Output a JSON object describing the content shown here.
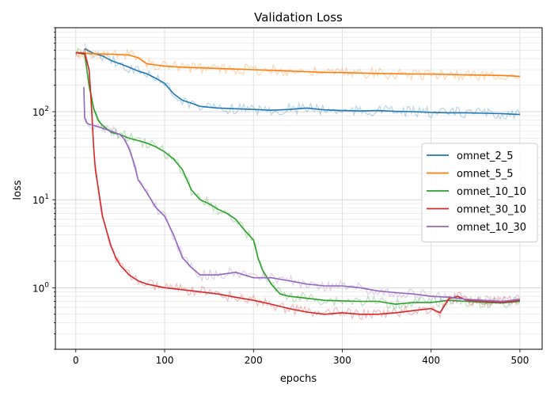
{
  "chart_data": {
    "type": "line",
    "title": "Validation Loss",
    "xlabel": "epochs",
    "ylabel": "loss",
    "x_scale": "linear",
    "y_scale": "log",
    "xlim": [
      -23,
      525
    ],
    "ylim": [
      0.2,
      900
    ],
    "grid": "major-and-minor",
    "legend_position": "center-right",
    "x_ticks": [
      0,
      100,
      200,
      300,
      400,
      500
    ],
    "y_ticks": [
      {
        "value": 1,
        "label": "10"
      },
      {
        "value": 10,
        "label": "10"
      },
      {
        "value": 100,
        "label": "10"
      }
    ],
    "y_tick_exponents": [
      "0",
      "1",
      "2"
    ],
    "series": [
      {
        "name": "omnet_2_5",
        "color": "#1f77b4",
        "x": [
          10,
          20,
          30,
          40,
          50,
          60,
          70,
          80,
          90,
          100,
          110,
          120,
          130,
          140,
          160,
          180,
          200,
          220,
          240,
          260,
          280,
          300,
          320,
          340,
          360,
          380,
          400,
          420,
          440,
          460,
          480,
          500
        ],
        "y": [
          520,
          460,
          430,
          380,
          350,
          320,
          290,
          270,
          240,
          210,
          160,
          135,
          125,
          115,
          110,
          108,
          106,
          104,
          106,
          110,
          105,
          103,
          102,
          103,
          101,
          100,
          98,
          97,
          97,
          96,
          95,
          93
        ]
      },
      {
        "name": "omnet_5_5",
        "color": "#ff7f0e",
        "x": [
          0,
          20,
          40,
          60,
          70,
          80,
          100,
          120,
          140,
          160,
          180,
          200,
          220,
          240,
          260,
          280,
          300,
          320,
          340,
          360,
          380,
          400,
          420,
          440,
          460,
          480,
          500
        ],
        "y": [
          470,
          455,
          450,
          440,
          410,
          350,
          330,
          320,
          315,
          310,
          305,
          300,
          295,
          290,
          285,
          280,
          278,
          275,
          272,
          270,
          268,
          267,
          265,
          262,
          260,
          258,
          252
        ]
      },
      {
        "name": "omnet_10_10",
        "color": "#2ca02c",
        "x": [
          0,
          10,
          15,
          20,
          25,
          30,
          40,
          50,
          60,
          70,
          80,
          90,
          100,
          110,
          120,
          130,
          140,
          150,
          160,
          170,
          180,
          190,
          200,
          205,
          210,
          220,
          230,
          240,
          250,
          260,
          280,
          300,
          320,
          340,
          360,
          380,
          400,
          420,
          440,
          460,
          480,
          500
        ],
        "y": [
          470,
          450,
          200,
          110,
          80,
          70,
          58,
          55,
          50,
          47,
          44,
          40,
          35,
          29,
          22,
          13,
          10,
          9,
          7.8,
          7,
          6,
          4.5,
          3.5,
          2.2,
          1.6,
          1.1,
          0.85,
          0.8,
          0.78,
          0.76,
          0.72,
          0.71,
          0.7,
          0.7,
          0.65,
          0.68,
          0.68,
          0.72,
          0.7,
          0.68,
          0.67,
          0.7
        ]
      },
      {
        "name": "omnet_30_10",
        "color": "#d62728",
        "x": [
          0,
          10,
          15,
          18,
          20,
          22,
          25,
          28,
          30,
          35,
          40,
          45,
          50,
          60,
          70,
          80,
          100,
          120,
          140,
          160,
          180,
          200,
          220,
          240,
          260,
          280,
          300,
          320,
          340,
          360,
          380,
          400,
          410,
          420,
          430,
          440,
          460,
          480,
          500
        ],
        "y": [
          470,
          460,
          300,
          100,
          40,
          22,
          14,
          9,
          6.5,
          4.3,
          2.9,
          2.2,
          1.8,
          1.4,
          1.2,
          1.1,
          1.0,
          0.95,
          0.9,
          0.85,
          0.78,
          0.72,
          0.65,
          0.58,
          0.53,
          0.5,
          0.52,
          0.5,
          0.5,
          0.52,
          0.55,
          0.58,
          0.52,
          0.75,
          0.8,
          0.72,
          0.7,
          0.68,
          0.72
        ]
      },
      {
        "name": "omnet_10_30",
        "color": "#9467bd",
        "x": [
          9,
          10,
          12,
          15,
          20,
          30,
          40,
          50,
          55,
          60,
          65,
          70,
          80,
          90,
          100,
          110,
          120,
          130,
          140,
          160,
          180,
          200,
          220,
          240,
          260,
          280,
          300,
          320,
          340,
          360,
          380,
          400,
          420,
          440,
          460,
          480,
          500
        ],
        "y": [
          190,
          85,
          75,
          72,
          70,
          65,
          60,
          55,
          48,
          38,
          27,
          17,
          12,
          8.2,
          6.5,
          4.0,
          2.2,
          1.7,
          1.4,
          1.4,
          1.5,
          1.3,
          1.3,
          1.2,
          1.1,
          1.05,
          1.05,
          1.0,
          0.92,
          0.88,
          0.85,
          0.8,
          0.78,
          0.74,
          0.72,
          0.7,
          0.74
        ]
      }
    ]
  }
}
